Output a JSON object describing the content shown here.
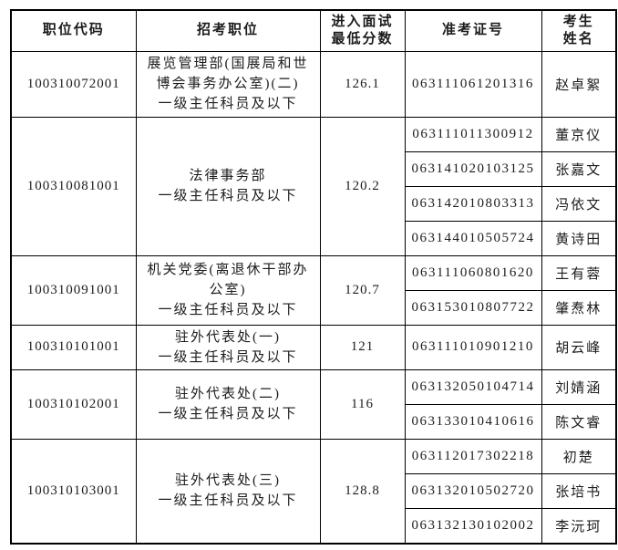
{
  "page": {
    "background_color": "#ffffff",
    "text_color": "#1c1c1c",
    "border_color": "#000000"
  },
  "table": {
    "columns": [
      {
        "label": "职位代码"
      },
      {
        "label": "招考职位"
      },
      {
        "label": "进入面试\n最低分数"
      },
      {
        "label": "准考证号"
      },
      {
        "label": "考生\n姓名"
      }
    ],
    "sections": [
      {
        "code": "100310072001",
        "position": "展览管理部(国展局和世博会事务办公室)(二)\n一级主任科员及以下",
        "score": "126.1",
        "candidates": [
          {
            "ticket": "063111061201316",
            "name": "赵卓絮"
          }
        ]
      },
      {
        "code": "100310081001",
        "position": "法律事务部\n一级主任科员及以下",
        "score": "120.2",
        "candidates": [
          {
            "ticket": "063111011300912",
            "name": "董京仪"
          },
          {
            "ticket": "063141020103125",
            "name": "张嘉文"
          },
          {
            "ticket": "063142010803313",
            "name": "冯依文"
          },
          {
            "ticket": "063144010505724",
            "name": "黄诗田"
          }
        ]
      },
      {
        "code": "100310091001",
        "position": "机关党委(离退休干部办公室)\n一级主任科员及以下",
        "score": "120.7",
        "candidates": [
          {
            "ticket": "063111060801620",
            "name": "王有蓉"
          },
          {
            "ticket": "063153010807722",
            "name": "肇焘林"
          }
        ]
      },
      {
        "code": "100310101001",
        "position": "驻外代表处(一)\n一级主任科员及以下",
        "score": "121",
        "candidates": [
          {
            "ticket": "063111010901210",
            "name": "胡云峰"
          }
        ]
      },
      {
        "code": "100310102001",
        "position": "驻外代表处(二)\n一级主任科员及以下",
        "score": "116",
        "candidates": [
          {
            "ticket": "063132050104714",
            "name": "刘婧涵"
          },
          {
            "ticket": "063133010410616",
            "name": "陈文睿"
          }
        ]
      },
      {
        "code": "100310103001",
        "position": "驻外代表处(三)\n一级主任科员及以下",
        "score": "128.8",
        "candidates": [
          {
            "ticket": "063112017302218",
            "name": "初楚"
          },
          {
            "ticket": "063132010502720",
            "name": "张培书"
          },
          {
            "ticket": "063132130102002",
            "name": "李沅珂"
          }
        ]
      }
    ]
  }
}
